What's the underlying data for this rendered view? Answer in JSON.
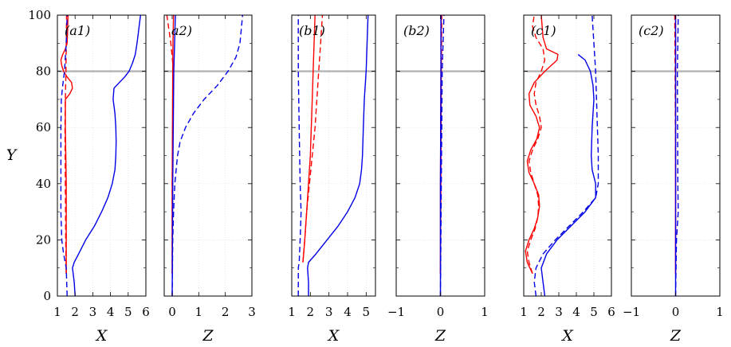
{
  "figure": {
    "y_axis_label": "Y",
    "reference_line": {
      "y": 80,
      "color": "#b3b3b3"
    }
  },
  "colors": {
    "red": "#ff0000",
    "blue": "#0000e6"
  },
  "chart_data": [
    {
      "type": "line",
      "panel": "a1",
      "tag": "(a1)",
      "xlabel": "X",
      "ylabel": "Y",
      "xlim": [
        1,
        6
      ],
      "ylim": [
        0,
        100
      ],
      "xticks": [
        1,
        2,
        3,
        4,
        5,
        6
      ],
      "yticks": [
        0,
        20,
        40,
        60,
        80,
        100
      ],
      "series": [
        {
          "color": "red",
          "style": "solid",
          "y": [
            8,
            20,
            40,
            60,
            70,
            72,
            74,
            76,
            78,
            80,
            82,
            84,
            86,
            88,
            90,
            95,
            100
          ],
          "x": [
            1.5,
            1.5,
            1.5,
            1.45,
            1.45,
            1.7,
            1.85,
            1.8,
            1.55,
            1.35,
            1.25,
            1.2,
            1.3,
            1.45,
            1.55,
            1.58,
            1.6
          ]
        },
        {
          "color": "red",
          "style": "dashed",
          "y": [
            8,
            20,
            40,
            60,
            70,
            80,
            90,
            100
          ],
          "x": [
            1.5,
            1.47,
            1.45,
            1.43,
            1.45,
            1.48,
            1.5,
            1.52
          ]
        },
        {
          "color": "blue",
          "style": "solid",
          "y": [
            0,
            5,
            10,
            12,
            15,
            20,
            25,
            30,
            35,
            40,
            45,
            50,
            55,
            60,
            65,
            70,
            74,
            76,
            78,
            80,
            83,
            86,
            90,
            95,
            100
          ],
          "x": [
            2.0,
            1.95,
            1.85,
            1.95,
            2.2,
            2.6,
            3.1,
            3.5,
            3.85,
            4.1,
            4.25,
            4.3,
            4.32,
            4.3,
            4.25,
            4.15,
            4.2,
            4.5,
            4.8,
            5.05,
            5.25,
            5.4,
            5.5,
            5.6,
            5.7
          ]
        },
        {
          "color": "blue",
          "style": "dashed",
          "y": [
            0,
            10,
            15,
            20,
            30,
            40,
            60,
            70,
            75,
            80,
            90,
            100
          ],
          "x": [
            1.55,
            1.5,
            1.35,
            1.25,
            1.2,
            1.2,
            1.2,
            1.22,
            1.3,
            1.4,
            1.5,
            1.55
          ]
        }
      ]
    },
    {
      "type": "line",
      "panel": "a2",
      "tag": "a2)",
      "xlabel": "Z",
      "ylabel": "",
      "xlim": [
        -0.3,
        3
      ],
      "ylim": [
        0,
        100
      ],
      "xticks": [
        0,
        1,
        2,
        3
      ],
      "yticks": [
        0,
        20,
        40,
        60,
        80,
        100
      ],
      "series": [
        {
          "color": "red",
          "style": "solid",
          "y": [
            8,
            40,
            80,
            90,
            100
          ],
          "x": [
            0.0,
            0.0,
            0.02,
            0.03,
            0.05
          ]
        },
        {
          "color": "red",
          "style": "dashed",
          "y": [
            8,
            40,
            70,
            80,
            90,
            100
          ],
          "x": [
            0.0,
            0.0,
            0.03,
            0.05,
            -0.05,
            -0.2
          ]
        },
        {
          "color": "blue",
          "style": "solid",
          "y": [
            0,
            40,
            80,
            100
          ],
          "x": [
            0.0,
            0.02,
            0.06,
            0.12
          ]
        },
        {
          "color": "blue",
          "style": "dashed",
          "y": [
            0,
            20,
            30,
            40,
            50,
            55,
            60,
            65,
            70,
            75,
            80,
            85,
            90,
            95,
            100
          ],
          "x": [
            0.0,
            0.02,
            0.05,
            0.1,
            0.2,
            0.3,
            0.5,
            0.8,
            1.2,
            1.7,
            2.1,
            2.4,
            2.55,
            2.6,
            2.65
          ]
        }
      ]
    },
    {
      "type": "line",
      "panel": "b1",
      "tag": "(b1)",
      "xlabel": "X",
      "ylabel": "",
      "xlim": [
        1,
        5.5
      ],
      "ylim": [
        0,
        100
      ],
      "xticks": [
        1,
        2,
        3,
        4,
        5
      ],
      "yticks": [
        0,
        20,
        40,
        60,
        80,
        100
      ],
      "series": [
        {
          "color": "red",
          "style": "solid",
          "y": [
            12,
            20,
            30,
            40,
            50,
            60,
            70,
            80,
            90,
            100
          ],
          "x": [
            1.6,
            1.7,
            1.8,
            1.9,
            2.0,
            2.05,
            2.1,
            2.15,
            2.2,
            2.25
          ]
        },
        {
          "color": "red",
          "style": "dashed",
          "y": [
            12,
            20,
            30,
            40,
            50,
            60,
            70,
            80,
            90,
            100
          ],
          "x": [
            1.6,
            1.7,
            1.8,
            1.95,
            2.1,
            2.25,
            2.35,
            2.45,
            2.55,
            2.65
          ]
        },
        {
          "color": "blue",
          "style": "solid",
          "y": [
            0,
            5,
            10,
            12,
            15,
            20,
            25,
            30,
            35,
            40,
            45,
            50,
            60,
            70,
            80,
            90,
            100
          ],
          "x": [
            1.9,
            1.9,
            1.85,
            1.9,
            2.3,
            2.9,
            3.5,
            4.0,
            4.4,
            4.65,
            4.75,
            4.8,
            4.85,
            4.9,
            5.0,
            5.05,
            5.1
          ]
        },
        {
          "color": "blue",
          "style": "dashed",
          "y": [
            0,
            10,
            12,
            20,
            30,
            40,
            60,
            80,
            90,
            100
          ],
          "x": [
            1.35,
            1.35,
            1.4,
            1.45,
            1.5,
            1.45,
            1.4,
            1.35,
            1.35,
            1.35
          ]
        }
      ]
    },
    {
      "type": "line",
      "panel": "b2",
      "tag": "(b2)",
      "xlabel": "Z",
      "ylabel": "",
      "xlim": [
        -1,
        1
      ],
      "ylim": [
        0,
        100
      ],
      "xticks": [
        -1,
        0,
        1
      ],
      "yticks": [
        0,
        20,
        40,
        60,
        80,
        100
      ],
      "series": [
        {
          "color": "red",
          "style": "solid",
          "y": [
            8,
            40,
            80,
            100
          ],
          "x": [
            0.0,
            0.0,
            0.01,
            0.02
          ]
        },
        {
          "color": "red",
          "style": "dashed",
          "y": [
            8,
            40,
            80,
            100
          ],
          "x": [
            0.0,
            0.01,
            0.02,
            0.03
          ]
        },
        {
          "color": "blue",
          "style": "solid",
          "y": [
            0,
            40,
            80,
            100
          ],
          "x": [
            0.0,
            0.0,
            0.01,
            0.01
          ]
        },
        {
          "color": "blue",
          "style": "dashed",
          "y": [
            0,
            40,
            80,
            90,
            100
          ],
          "x": [
            0.0,
            0.02,
            0.04,
            0.06,
            0.08
          ]
        }
      ]
    },
    {
      "type": "line",
      "panel": "c1",
      "tag": "(c1)",
      "xlabel": "X",
      "ylabel": "",
      "xlim": [
        1,
        6
      ],
      "ylim": [
        0,
        100
      ],
      "xticks": [
        1,
        2,
        3,
        4,
        5,
        6
      ],
      "yticks": [
        0,
        20,
        40,
        60,
        80,
        100
      ],
      "series": [
        {
          "color": "red",
          "style": "solid",
          "y": [
            8,
            12,
            16,
            20,
            24,
            28,
            32,
            36,
            40,
            44,
            48,
            52,
            56,
            60,
            64,
            68,
            72,
            76,
            80,
            84,
            86,
            88,
            92,
            96,
            100
          ],
          "x": [
            1.5,
            1.2,
            1.1,
            1.3,
            1.6,
            1.8,
            1.9,
            1.85,
            1.6,
            1.3,
            1.2,
            1.4,
            1.75,
            1.9,
            1.7,
            1.35,
            1.3,
            1.6,
            2.2,
            2.9,
            2.95,
            2.3,
            2.1,
            2.05,
            2.0
          ]
        },
        {
          "color": "red",
          "style": "dashed",
          "y": [
            8,
            12,
            16,
            20,
            24,
            28,
            32,
            36,
            40,
            44,
            48,
            52,
            56,
            60,
            64,
            68,
            72,
            76,
            80,
            84,
            88,
            92,
            96,
            100
          ],
          "x": [
            1.5,
            1.3,
            1.2,
            1.4,
            1.65,
            1.8,
            1.85,
            1.8,
            1.6,
            1.4,
            1.3,
            1.5,
            1.8,
            2.0,
            1.9,
            1.7,
            1.6,
            1.7,
            2.0,
            2.2,
            2.1,
            1.7,
            1.5,
            1.6
          ]
        },
        {
          "color": "blue",
          "style": "solid",
          "y": [
            0,
            5,
            10,
            15,
            20,
            25,
            30,
            35,
            40,
            45,
            50,
            60,
            70,
            75,
            80,
            84,
            86
          ],
          "x": [
            2.2,
            2.1,
            2.0,
            2.3,
            2.9,
            3.7,
            4.5,
            5.1,
            5.1,
            4.9,
            4.85,
            4.9,
            5.0,
            4.95,
            4.8,
            4.5,
            4.1
          ]
        },
        {
          "color": "blue",
          "style": "dashed",
          "y": [
            0,
            5,
            10,
            15,
            20,
            25,
            30,
            35,
            40,
            50,
            60,
            70,
            80,
            85,
            90,
            95,
            100
          ],
          "x": [
            1.7,
            1.6,
            1.7,
            2.1,
            2.8,
            3.6,
            4.4,
            5.1,
            5.25,
            5.25,
            5.2,
            5.15,
            5.1,
            5.05,
            5.0,
            4.95,
            4.9
          ]
        }
      ]
    },
    {
      "type": "line",
      "panel": "c2",
      "tag": "(c2)",
      "xlabel": "Z",
      "ylabel": "",
      "xlim": [
        -1,
        1
      ],
      "ylim": [
        0,
        100
      ],
      "xticks": [
        -1,
        0,
        1
      ],
      "yticks": [
        0,
        20,
        40,
        60,
        80,
        100
      ],
      "series": [
        {
          "color": "red",
          "style": "solid",
          "y": [
            8,
            40,
            80,
            100
          ],
          "x": [
            0.0,
            0.0,
            0.0,
            0.0
          ]
        },
        {
          "color": "red",
          "style": "dashed",
          "y": [
            8,
            40,
            80,
            100
          ],
          "x": [
            0.0,
            0.0,
            -0.01,
            -0.02
          ]
        },
        {
          "color": "blue",
          "style": "solid",
          "y": [
            0,
            40,
            80,
            100
          ],
          "x": [
            0.0,
            0.0,
            0.0,
            0.0
          ]
        },
        {
          "color": "blue",
          "style": "dashed",
          "y": [
            0,
            20,
            30,
            40,
            80,
            90,
            100
          ],
          "x": [
            0.0,
            0.02,
            0.06,
            0.05,
            0.04,
            0.05,
            0.06
          ]
        }
      ]
    }
  ]
}
